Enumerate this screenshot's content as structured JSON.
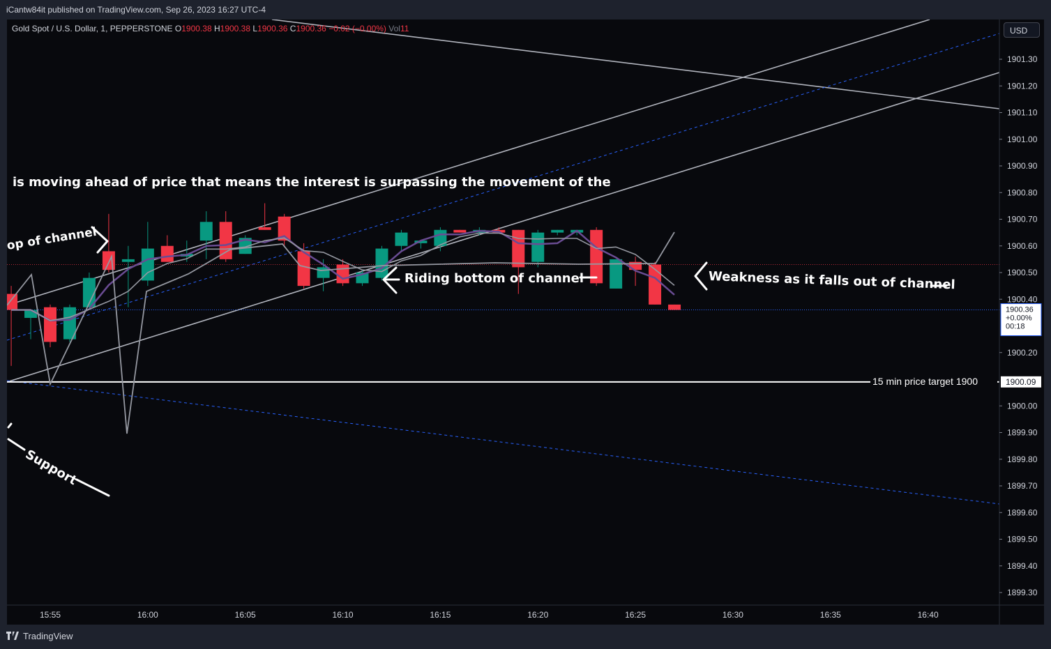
{
  "header": {
    "publish_line": "iCantw84it published on TradingView.com, Sep 26, 2023 16:27 UTC-4"
  },
  "legend": {
    "symbol": "Gold Spot / U.S. Dollar, 1, PEPPERSTONE",
    "o_label": "O",
    "o_value": "1900.38",
    "h_label": "H",
    "h_value": "1900.38",
    "l_label": "L",
    "l_value": "1900.36",
    "c_label": "C",
    "c_value": "1900.36",
    "change": "−0.02 (−0.00%)",
    "vol_label": "Vol",
    "vol_value": "11"
  },
  "currency_button": "USD",
  "price_badge": {
    "price": "1900.36",
    "pct": "+0.00%",
    "timer": "00:18"
  },
  "target_badge": "1900.09",
  "annotations": {
    "top_text": "is moving ahead of price that means the interest is surpassing the movement of the",
    "top_of_channel": "op of channel",
    "riding_bottom": "Riding bottom of channel",
    "weakness": "Weakness as it falls out of channel",
    "support": "Support",
    "target_label": "15 min price target 1900"
  },
  "footer": {
    "brand": "TradingView"
  },
  "colors": {
    "up": "#089981",
    "down": "#f23645",
    "channel": "#b2b5be",
    "dashed": "#2962ff",
    "ma_purple": "#6a4c93",
    "ma_grey": "#9598a1"
  },
  "chart_data": {
    "type": "candlestick",
    "ylim": [
      1899.25,
      1901.38
    ],
    "y_ticks": [
      "1901.30",
      "1901.20",
      "1901.10",
      "1901.00",
      "1900.90",
      "1900.80",
      "1900.70",
      "1900.60",
      "1900.50",
      "1900.40",
      "1900.20",
      "1900.00",
      "1899.90",
      "1899.80",
      "1899.70",
      "1899.60",
      "1899.50",
      "1899.40",
      "1899.30"
    ],
    "x_ticks": [
      "15:55",
      "16:00",
      "16:05",
      "16:10",
      "16:15",
      "16:20",
      "16:25",
      "16:30",
      "16:35",
      "16:40"
    ],
    "target_price": 1900.09,
    "candles": [
      {
        "t": "15:53",
        "o": 1900.42,
        "h": 1900.45,
        "l": 1900.15,
        "c": 1900.36
      },
      {
        "t": "15:54",
        "o": 1900.33,
        "h": 1900.36,
        "l": 1900.25,
        "c": 1900.36
      },
      {
        "t": "15:55",
        "o": 1900.37,
        "h": 1900.38,
        "l": 1900.22,
        "c": 1900.24
      },
      {
        "t": "15:56",
        "o": 1900.25,
        "h": 1900.38,
        "l": 1900.24,
        "c": 1900.37
      },
      {
        "t": "15:57",
        "o": 1900.37,
        "h": 1900.5,
        "l": 1900.36,
        "c": 1900.48
      },
      {
        "t": "15:58",
        "o": 1900.58,
        "h": 1900.72,
        "l": 1900.5,
        "c": 1900.51
      },
      {
        "t": "15:59",
        "o": 1900.54,
        "h": 1900.6,
        "l": 1900.37,
        "c": 1900.55
      },
      {
        "t": "16:00",
        "o": 1900.47,
        "h": 1900.69,
        "l": 1900.45,
        "c": 1900.59
      },
      {
        "t": "16:01",
        "o": 1900.6,
        "h": 1900.64,
        "l": 1900.54,
        "c": 1900.54
      },
      {
        "t": "16:02",
        "o": 1900.56,
        "h": 1900.62,
        "l": 1900.54,
        "c": 1900.57
      },
      {
        "t": "16:03",
        "o": 1900.62,
        "h": 1900.73,
        "l": 1900.55,
        "c": 1900.69
      },
      {
        "t": "16:04",
        "o": 1900.69,
        "h": 1900.73,
        "l": 1900.54,
        "c": 1900.55
      },
      {
        "t": "16:05",
        "o": 1900.57,
        "h": 1900.64,
        "l": 1900.57,
        "c": 1900.63
      },
      {
        "t": "16:06",
        "o": 1900.67,
        "h": 1900.76,
        "l": 1900.66,
        "c": 1900.66
      },
      {
        "t": "16:07",
        "o": 1900.71,
        "h": 1900.72,
        "l": 1900.6,
        "c": 1900.62
      },
      {
        "t": "16:08",
        "o": 1900.58,
        "h": 1900.61,
        "l": 1900.44,
        "c": 1900.45
      },
      {
        "t": "16:09",
        "o": 1900.48,
        "h": 1900.55,
        "l": 1900.43,
        "c": 1900.52
      },
      {
        "t": "16:10",
        "o": 1900.53,
        "h": 1900.55,
        "l": 1900.45,
        "c": 1900.46
      },
      {
        "t": "16:11",
        "o": 1900.46,
        "h": 1900.51,
        "l": 1900.45,
        "c": 1900.5
      },
      {
        "t": "16:12",
        "o": 1900.48,
        "h": 1900.6,
        "l": 1900.47,
        "c": 1900.59
      },
      {
        "t": "16:13",
        "o": 1900.6,
        "h": 1900.66,
        "l": 1900.58,
        "c": 1900.65
      },
      {
        "t": "16:14",
        "o": 1900.61,
        "h": 1900.62,
        "l": 1900.59,
        "c": 1900.62
      },
      {
        "t": "16:15",
        "o": 1900.6,
        "h": 1900.67,
        "l": 1900.58,
        "c": 1900.66
      },
      {
        "t": "16:16",
        "o": 1900.66,
        "h": 1900.66,
        "l": 1900.65,
        "c": 1900.65
      },
      {
        "t": "16:17",
        "o": 1900.65,
        "h": 1900.67,
        "l": 1900.64,
        "c": 1900.66
      },
      {
        "t": "16:18",
        "o": 1900.66,
        "h": 1900.67,
        "l": 1900.65,
        "c": 1900.65
      },
      {
        "t": "16:19",
        "o": 1900.66,
        "h": 1900.66,
        "l": 1900.42,
        "c": 1900.52
      },
      {
        "t": "16:20",
        "o": 1900.54,
        "h": 1900.66,
        "l": 1900.52,
        "c": 1900.65
      },
      {
        "t": "16:21",
        "o": 1900.65,
        "h": 1900.66,
        "l": 1900.64,
        "c": 1900.66
      },
      {
        "t": "16:22",
        "o": 1900.65,
        "h": 1900.66,
        "l": 1900.64,
        "c": 1900.66
      },
      {
        "t": "16:23",
        "o": 1900.66,
        "h": 1900.67,
        "l": 1900.45,
        "c": 1900.46
      },
      {
        "t": "16:24",
        "o": 1900.44,
        "h": 1900.55,
        "l": 1900.44,
        "c": 1900.55
      },
      {
        "t": "16:25",
        "o": 1900.54,
        "h": 1900.56,
        "l": 1900.45,
        "c": 1900.51
      },
      {
        "t": "16:26",
        "o": 1900.53,
        "h": 1900.54,
        "l": 1900.38,
        "c": 1900.38
      },
      {
        "t": "16:27",
        "o": 1900.38,
        "h": 1900.38,
        "l": 1900.36,
        "c": 1900.36
      }
    ]
  }
}
